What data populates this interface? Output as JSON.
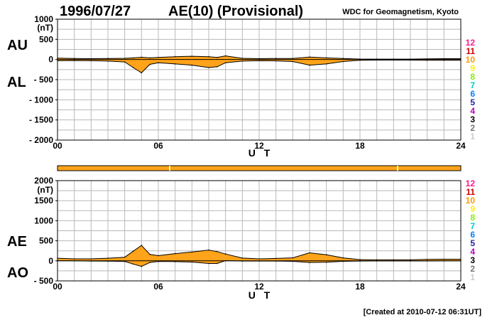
{
  "header": {
    "date": "1996/07/27",
    "title": "AE(10) (Provisional)",
    "source": "WDC for Geomagnetism, Kyoto"
  },
  "footer": {
    "created": "[Created at 2010-07-12 06:31UT]"
  },
  "station_scale": {
    "labels": [
      "12",
      "11",
      "10",
      "9",
      "8",
      "7",
      "6",
      "5",
      "4",
      "3",
      "2",
      "1"
    ],
    "colors": [
      "#ff1a8c",
      "#cc0000",
      "#ff9900",
      "#ffee00",
      "#88ee00",
      "#00cccc",
      "#0080ff",
      "#2222aa",
      "#bb00bb",
      "#000000",
      "#777777",
      "#cccccc"
    ]
  },
  "colors": {
    "fill": "#ffa31a",
    "line": "#000000",
    "status_bar": "#ffa31a",
    "status_tick": "#ffff88"
  },
  "chart_data": [
    {
      "type": "area",
      "panel": "AU/AL",
      "series": [
        {
          "name": "AU",
          "label": "AU",
          "x": [
            0,
            1,
            2,
            3,
            4,
            4.5,
            5,
            5.5,
            6,
            7,
            8,
            9,
            9.5,
            10,
            11,
            12,
            13,
            14,
            15,
            16,
            17,
            18,
            19,
            20,
            21,
            22,
            23,
            24
          ],
          "values": [
            35,
            25,
            20,
            25,
            30,
            40,
            55,
            40,
            50,
            70,
            80,
            70,
            50,
            90,
            30,
            20,
            25,
            25,
            60,
            40,
            25,
            10,
            10,
            10,
            10,
            15,
            20,
            20
          ]
        },
        {
          "name": "AL",
          "label": "AL",
          "x": [
            0,
            1,
            2,
            3,
            4,
            4.5,
            5,
            5.5,
            6,
            7,
            8,
            9,
            9.5,
            10,
            11,
            12,
            13,
            14,
            15,
            16,
            17,
            18,
            19,
            20,
            21,
            22,
            23,
            24
          ],
          "values": [
            -30,
            -25,
            -30,
            -40,
            -60,
            -200,
            -330,
            -120,
            -80,
            -110,
            -140,
            -200,
            -180,
            -80,
            -40,
            -30,
            -35,
            -50,
            -140,
            -110,
            -50,
            -20,
            -15,
            -15,
            -15,
            -20,
            -20,
            -20
          ]
        }
      ],
      "xlabel": "U T",
      "xticks": [
        "00",
        "06",
        "12",
        "18",
        "24"
      ],
      "xlim": [
        0,
        24
      ],
      "ylabel": "(nT)",
      "ylim": [
        -2000,
        1000
      ],
      "yticks": [
        "1000",
        "500",
        "0",
        "- 500",
        "- 1000",
        "- 1500",
        "- 2000"
      ],
      "grid": true
    },
    {
      "type": "area",
      "panel": "AE/AO",
      "series": [
        {
          "name": "AE",
          "label": "AE",
          "x": [
            0,
            1,
            2,
            3,
            4,
            4.5,
            5,
            5.5,
            6,
            7,
            8,
            9,
            9.5,
            10,
            11,
            12,
            13,
            14,
            15,
            16,
            17,
            18,
            19,
            20,
            21,
            22,
            23,
            24
          ],
          "values": [
            65,
            50,
            50,
            65,
            90,
            240,
            385,
            160,
            130,
            180,
            220,
            270,
            230,
            170,
            70,
            50,
            60,
            75,
            200,
            150,
            75,
            30,
            25,
            25,
            25,
            35,
            40,
            40
          ]
        },
        {
          "name": "AO",
          "label": "AO",
          "x": [
            0,
            1,
            2,
            3,
            4,
            4.5,
            5,
            5.5,
            6,
            7,
            8,
            9,
            9.5,
            10,
            11,
            12,
            13,
            14,
            15,
            16,
            17,
            18,
            19,
            20,
            21,
            22,
            23,
            24
          ],
          "values": [
            3,
            0,
            -5,
            -8,
            -15,
            -80,
            -138,
            -40,
            -15,
            -20,
            -30,
            -65,
            -65,
            5,
            -5,
            -5,
            -5,
            -12,
            -40,
            -35,
            -12,
            -5,
            -3,
            -3,
            -3,
            -3,
            0,
            0
          ]
        }
      ],
      "xlabel": "U T",
      "xticks": [
        "00",
        "06",
        "12",
        "18",
        "24"
      ],
      "xlim": [
        0,
        24
      ],
      "ylabel": "(nT)",
      "ylim": [
        -500,
        2000
      ],
      "yticks": [
        "2000",
        "1500",
        "1000",
        "500",
        "0",
        "- 500"
      ],
      "grid": true
    }
  ]
}
